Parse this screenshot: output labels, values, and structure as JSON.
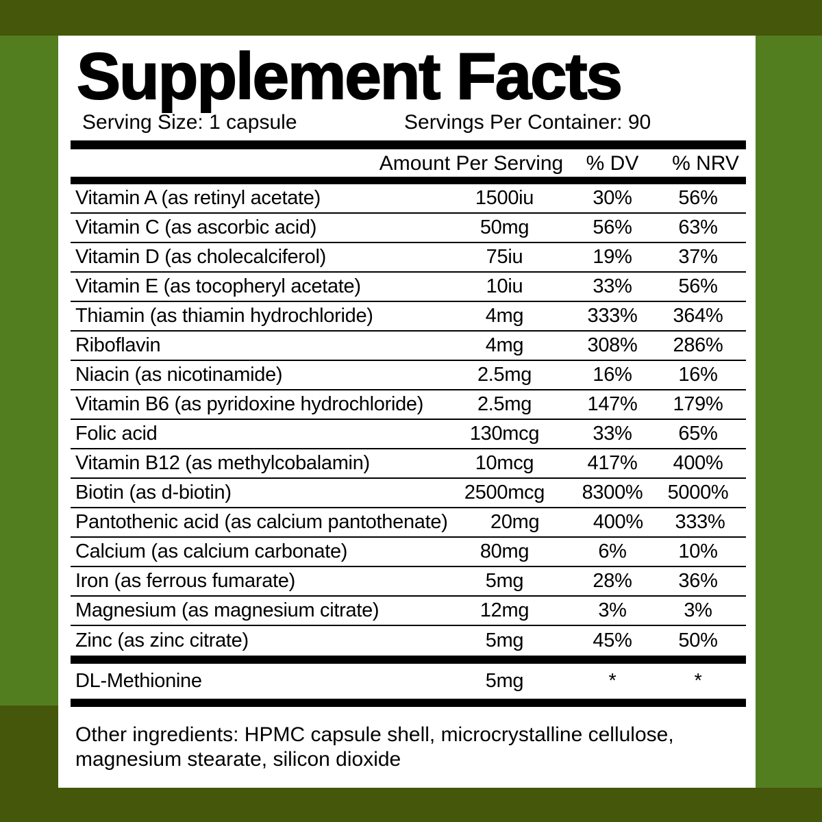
{
  "colors": {
    "frame_dark": "#45570a",
    "frame_green": "#527e20",
    "panel": "#ffffff",
    "text": "#000000"
  },
  "header": {
    "title": "Supplement Facts",
    "serving_size": "Serving Size: 1 capsule",
    "servings_per_container": "Servings Per Container: 90"
  },
  "table": {
    "columns": {
      "amount": "Amount Per Serving",
      "dv": "% DV",
      "nrv": "% NRV"
    },
    "rows": [
      {
        "name": "Vitamin A (as retinyl acetate)",
        "amount": "1500iu",
        "dv": "30%",
        "nrv": "56%"
      },
      {
        "name": "Vitamin C (as ascorbic acid)",
        "amount": "50mg",
        "dv": "56%",
        "nrv": "63%"
      },
      {
        "name": "Vitamin D (as cholecalciferol)",
        "amount": "75iu",
        "dv": "19%",
        "nrv": "37%"
      },
      {
        "name": "Vitamin E (as tocopheryl acetate)",
        "amount": "10iu",
        "dv": "33%",
        "nrv": "56%"
      },
      {
        "name": "Thiamin (as thiamin hydrochloride)",
        "amount": "4mg",
        "dv": "333%",
        "nrv": "364%"
      },
      {
        "name": "Riboflavin",
        "amount": "4mg",
        "dv": "308%",
        "nrv": "286%"
      },
      {
        "name": "Niacin (as nicotinamide)",
        "amount": "2.5mg",
        "dv": "16%",
        "nrv": "16%"
      },
      {
        "name": "Vitamin B6 (as pyridoxine hydrochloride)",
        "amount": "2.5mg",
        "dv": "147%",
        "nrv": "179%"
      },
      {
        "name": "Folic acid",
        "amount": "130mcg",
        "dv": "33%",
        "nrv": "65%"
      },
      {
        "name": "Vitamin B12 (as methylcobalamin)",
        "amount": "10mcg",
        "dv": "417%",
        "nrv": "400%"
      },
      {
        "name": "Biotin (as d-biotin)",
        "amount": "2500mcg",
        "dv": "8300%",
        "nrv": "5000%"
      },
      {
        "name": "Pantothenic acid (as calcium pantothenate)",
        "amount": "20mg",
        "dv": "400%",
        "nrv": "333%"
      },
      {
        "name": "Calcium (as calcium carbonate)",
        "amount": "80mg",
        "dv": "6%",
        "nrv": "10%"
      },
      {
        "name": "Iron (as ferrous fumarate)",
        "amount": "5mg",
        "dv": "28%",
        "nrv": "36%"
      },
      {
        "name": "Magnesium (as magnesium citrate)",
        "amount": "12mg",
        "dv": "3%",
        "nrv": "3%"
      },
      {
        "name": "Zinc (as zinc citrate)",
        "amount": "5mg",
        "dv": "45%",
        "nrv": "50%"
      }
    ],
    "footer_row": {
      "name": "DL-Methionine",
      "amount": "5mg",
      "dv": "*",
      "nrv": "*"
    }
  },
  "footer": {
    "other_ingredients_line1": "Other ingredients: HPMC capsule shell, microcrystalline cellulose,",
    "other_ingredients_line2": "magnesium stearate, silicon dioxide"
  }
}
